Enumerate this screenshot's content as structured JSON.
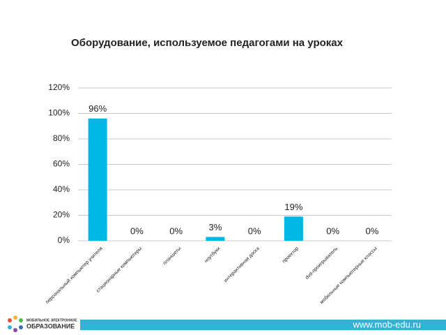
{
  "chart_data": {
    "type": "bar",
    "title": "Оборудование, используемое педагогами на уроках",
    "categories": [
      "персональный компьютер учителя",
      "стационарные компьютеры",
      "планшеты",
      "ноутбуки",
      "интерактивная доска",
      "проектор",
      "dvd-проигрыватель",
      "мобильные компьютерные классы"
    ],
    "values": [
      96,
      0,
      0,
      3,
      0,
      19,
      0,
      0
    ],
    "value_labels": [
      "96%",
      "0%",
      "0%",
      "3%",
      "0%",
      "19%",
      "0%",
      "0%"
    ],
    "color": "#00b6e4",
    "ylim": [
      0,
      120
    ],
    "yticks": [
      {
        "value": 0,
        "label": "0%"
      },
      {
        "value": 20,
        "label": "20%"
      },
      {
        "value": 40,
        "label": "40%"
      },
      {
        "value": 60,
        "label": "60%"
      },
      {
        "value": 80,
        "label": "80%"
      },
      {
        "value": 100,
        "label": "100%"
      },
      {
        "value": 120,
        "label": "120%"
      }
    ],
    "grid": true
  },
  "footer": {
    "logo_top": "МОБИЛЬНОЕ ЭЛЕКТРОННОЕ",
    "logo_bottom": "ОБРАЗОВАНИЕ",
    "url": "www.mob-edu.ru"
  }
}
